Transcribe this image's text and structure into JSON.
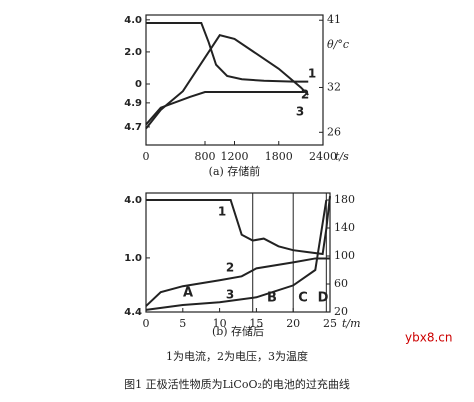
{
  "chart_data": [
    {
      "type": "line",
      "caption": "(a) 存储前",
      "xlabel": "t/s",
      "y2label": "θ/°c",
      "xlim": [
        0,
        2400
      ],
      "xticks": [
        0,
        800,
        1200,
        1800,
        2400
      ],
      "ylim": [
        -3.8,
        4.3
      ],
      "yticks": [
        {
          "value": 4,
          "label": "4.0"
        },
        {
          "value": 2,
          "label": "2.0"
        },
        0
      ],
      "yvlim": [
        4.55,
        5.63
      ],
      "yvticks": [
        4.9,
        4.7
      ],
      "y2lim": [
        24.3,
        41.7
      ],
      "y2ticks": [
        41,
        32,
        26
      ],
      "series": [
        {
          "name": "1",
          "axis": "y",
          "color": "#222",
          "x": [
            0,
            400,
            750,
            850,
            950,
            1100,
            1300,
            1600,
            2000,
            2200
          ],
          "values": [
            3.8,
            3.8,
            3.8,
            2.6,
            1.2,
            0.5,
            0.3,
            0.2,
            0.15,
            0.15
          ]
        },
        {
          "name": "2",
          "axis": "yv",
          "color": "#222",
          "x": [
            0,
            200,
            600,
            800,
            1200,
            1600,
            2000,
            2150
          ],
          "values": [
            4.72,
            4.86,
            4.95,
            4.99,
            4.99,
            4.99,
            4.99,
            4.99
          ]
        },
        {
          "name": "3",
          "axis": "y2",
          "color": "#222",
          "x": [
            0,
            200,
            500,
            800,
            1000,
            1200,
            1500,
            1800,
            2100,
            2200
          ],
          "values": [
            26.5,
            29,
            31.5,
            36,
            39,
            38.5,
            36.5,
            34.5,
            32,
            31
          ]
        }
      ]
    },
    {
      "type": "line",
      "caption": "(b) 存储后",
      "xlabel": "t/m",
      "xlim": [
        0,
        25
      ],
      "xticks": [
        0,
        5,
        10,
        15,
        20,
        25
      ],
      "ylim": [
        -1.8,
        4.36
      ],
      "yticks": [
        {
          "value": 4,
          "label": "4.0"
        },
        {
          "value": 1,
          "label": "1.0"
        }
      ],
      "yvlim": [
        4.4,
        5.0
      ],
      "yvticks": [
        4.4
      ],
      "y2lim": [
        20,
        190
      ],
      "y2ticks": [
        180,
        140,
        100,
        60,
        20
      ],
      "boundaries": [
        14.5,
        20,
        24.5
      ],
      "region_labels": [
        "A",
        "B",
        "C",
        "D"
      ],
      "series": [
        {
          "name": "1",
          "axis": "y",
          "color": "#222",
          "x": [
            0,
            5,
            11.5,
            13,
            14.5,
            16,
            18,
            20,
            22,
            24,
            24.5,
            25
          ],
          "values": [
            4,
            4,
            4,
            2.2,
            1.9,
            2,
            1.6,
            1.4,
            1.3,
            1.2,
            2.5,
            4.2
          ]
        },
        {
          "name": "2",
          "axis": "yv",
          "color": "#222",
          "x": [
            0,
            2,
            5,
            10,
            13,
            15,
            20,
            23,
            25
          ],
          "values": [
            4.43,
            4.5,
            4.53,
            4.56,
            4.58,
            4.62,
            4.65,
            4.67,
            4.67
          ]
        },
        {
          "name": "3",
          "axis": "y2",
          "color": "#222",
          "x": [
            0,
            5,
            10,
            15,
            20,
            23,
            24.5
          ],
          "values": [
            23,
            30,
            34,
            41,
            58,
            80,
            180
          ]
        }
      ]
    }
  ],
  "legend_note": "1为电流，2为电压，3为温度",
  "figure_title": "图1 正极活性物质为LiCoO₂的电池的过充曲线",
  "watermark": "ybx8.cn"
}
